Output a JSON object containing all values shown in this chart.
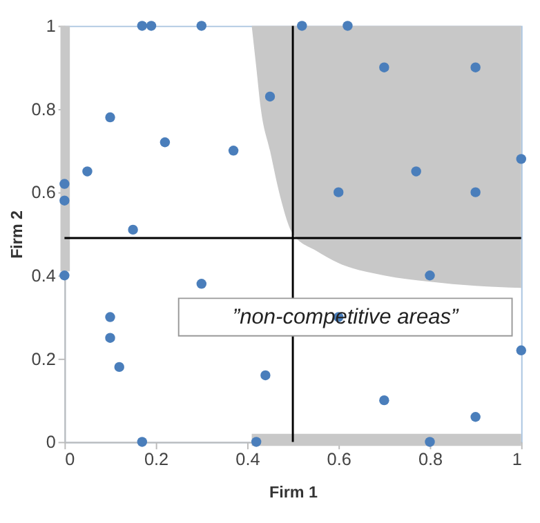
{
  "chart_data": {
    "type": "scatter",
    "xlabel": "Firm 1",
    "ylabel": "Firm 2",
    "xlim": [
      0,
      1
    ],
    "ylim": [
      0,
      1
    ],
    "xticks": [
      0,
      0.2,
      0.4,
      0.6,
      0.8,
      1
    ],
    "yticks": [
      0,
      0.2,
      0.4,
      0.6,
      0.8,
      1
    ],
    "grid": false,
    "marker": "circle",
    "series": [
      {
        "color": "#4a7ebb",
        "x": [
          0.17,
          0.19,
          0.3,
          0.52,
          0.62,
          0.7,
          0.9,
          0.45,
          0.1,
          0.22,
          0.37,
          0.05,
          0,
          0,
          0.15,
          1.0,
          0.77,
          0.6,
          0.9,
          0.8,
          0,
          0.3,
          0.1,
          0.1,
          0.12,
          0.44,
          0.6,
          1.0,
          0.7,
          0.9,
          0.17,
          0.42,
          0.8
        ],
        "values": [
          1,
          1,
          1,
          1,
          1,
          0.9,
          0.9,
          0.83,
          0.78,
          0.72,
          0.7,
          0.65,
          0.62,
          0.58,
          0.51,
          0.68,
          0.65,
          0.6,
          0.6,
          0.4,
          0.4,
          0.38,
          0.3,
          0.25,
          0.18,
          0.16,
          0.3,
          0.22,
          0.1,
          0.06,
          0,
          0,
          0
        ]
      }
    ],
    "ref_lines": [
      {
        "axis": "x",
        "value": 0.5,
        "color": "#000000"
      },
      {
        "axis": "y",
        "value": 0.49,
        "color": "#000000"
      }
    ],
    "annotations": [
      "”non-competitive areas”"
    ]
  }
}
